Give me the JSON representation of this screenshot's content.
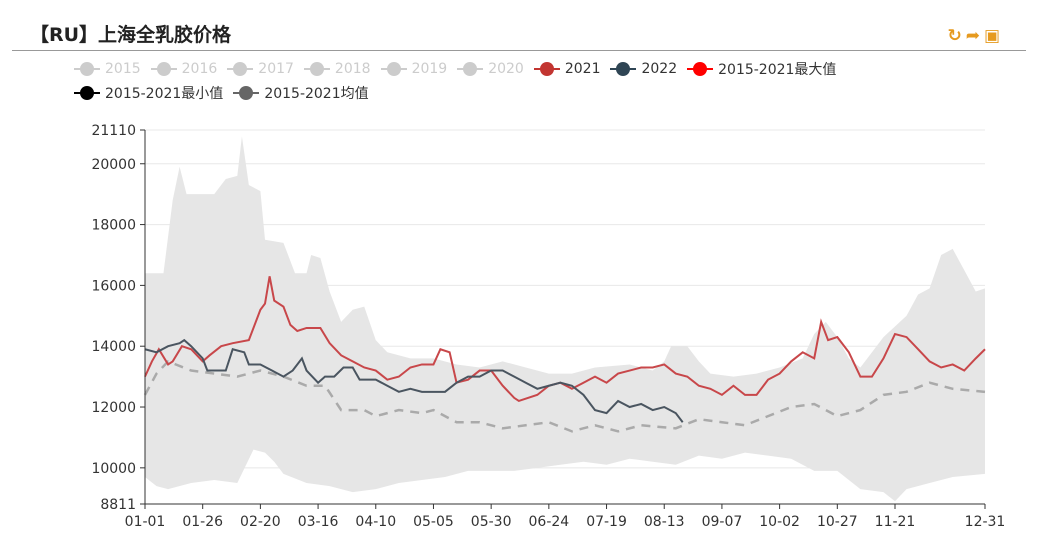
{
  "title": "【RU】上海全乳胶价格",
  "toolbar": {
    "refresh_icon": "refresh-icon",
    "share_icon": "share-icon",
    "save_icon": "save-image-icon"
  },
  "chart_data": {
    "type": "line",
    "title": "【RU】上海全乳胶价格",
    "legend": [
      {
        "name": "2015",
        "color": "#cccccc",
        "active": false
      },
      {
        "name": "2016",
        "color": "#cccccc",
        "active": false
      },
      {
        "name": "2017",
        "color": "#cccccc",
        "active": false
      },
      {
        "name": "2018",
        "color": "#cccccc",
        "active": false
      },
      {
        "name": "2019",
        "color": "#cccccc",
        "active": false
      },
      {
        "name": "2020",
        "color": "#cccccc",
        "active": false
      },
      {
        "name": "2021",
        "color": "#c23531",
        "active": true
      },
      {
        "name": "2022",
        "color": "#2f4554",
        "active": true
      },
      {
        "name": "2015-2021最大值",
        "color": "#ff0000",
        "active": true
      },
      {
        "name": "2015-2021最小值",
        "color": "#000000",
        "active": true
      },
      {
        "name": "2015-2021均值",
        "color": "#666666",
        "active": true
      }
    ],
    "legend_position": "top",
    "ylim": [
      8811,
      21110
    ],
    "yticks": [
      8811,
      10000,
      12000,
      14000,
      16000,
      18000,
      20000,
      21110
    ],
    "xticks": [
      "01-01",
      "01-26",
      "02-20",
      "03-16",
      "04-10",
      "05-05",
      "05-30",
      "06-24",
      "07-19",
      "08-13",
      "09-07",
      "10-02",
      "10-27",
      "11-21",
      "12-31"
    ],
    "x_unit": "day of year",
    "series": [
      {
        "name": "2021",
        "color": "#c23531",
        "points": [
          [
            0,
            13000
          ],
          [
            3,
            13500
          ],
          [
            6,
            13900
          ],
          [
            10,
            13400
          ],
          [
            12,
            13500
          ],
          [
            16,
            14000
          ],
          [
            20,
            13900
          ],
          [
            25,
            13500
          ],
          [
            28,
            13700
          ],
          [
            33,
            14000
          ],
          [
            38,
            14100
          ],
          [
            45,
            14200
          ],
          [
            50,
            15200
          ],
          [
            52,
            15400
          ],
          [
            54,
            16300
          ],
          [
            56,
            15500
          ],
          [
            60,
            15300
          ],
          [
            63,
            14700
          ],
          [
            66,
            14500
          ],
          [
            70,
            14600
          ],
          [
            76,
            14600
          ],
          [
            80,
            14100
          ],
          [
            85,
            13700
          ],
          [
            90,
            13500
          ],
          [
            95,
            13300
          ],
          [
            100,
            13200
          ],
          [
            105,
            12900
          ],
          [
            110,
            13000
          ],
          [
            115,
            13300
          ],
          [
            120,
            13400
          ],
          [
            125,
            13400
          ],
          [
            128,
            13900
          ],
          [
            132,
            13800
          ],
          [
            135,
            12800
          ],
          [
            140,
            12900
          ],
          [
            145,
            13200
          ],
          [
            150,
            13200
          ],
          [
            155,
            12700
          ],
          [
            160,
            12300
          ],
          [
            162,
            12200
          ],
          [
            170,
            12400
          ],
          [
            175,
            12700
          ],
          [
            180,
            12800
          ],
          [
            185,
            12600
          ],
          [
            190,
            12800
          ],
          [
            195,
            13000
          ],
          [
            200,
            12800
          ],
          [
            205,
            13100
          ],
          [
            210,
            13200
          ],
          [
            215,
            13300
          ],
          [
            220,
            13300
          ],
          [
            225,
            13400
          ],
          [
            230,
            13100
          ],
          [
            235,
            13000
          ],
          [
            240,
            12700
          ],
          [
            245,
            12600
          ],
          [
            250,
            12400
          ],
          [
            255,
            12700
          ],
          [
            260,
            12400
          ],
          [
            265,
            12400
          ],
          [
            270,
            12900
          ],
          [
            275,
            13100
          ],
          [
            280,
            13500
          ],
          [
            285,
            13800
          ],
          [
            290,
            13600
          ],
          [
            293,
            14800
          ],
          [
            296,
            14200
          ],
          [
            300,
            14300
          ],
          [
            305,
            13800
          ],
          [
            310,
            13000
          ],
          [
            315,
            13000
          ],
          [
            320,
            13600
          ],
          [
            325,
            14400
          ],
          [
            330,
            14300
          ],
          [
            335,
            13900
          ],
          [
            340,
            13500
          ],
          [
            345,
            13300
          ],
          [
            350,
            13400
          ],
          [
            355,
            13200
          ],
          [
            360,
            13600
          ],
          [
            364,
            13900
          ]
        ]
      },
      {
        "name": "2022",
        "color": "#2f4554",
        "points": [
          [
            0,
            13900
          ],
          [
            5,
            13800
          ],
          [
            10,
            14000
          ],
          [
            15,
            14100
          ],
          [
            17,
            14200
          ],
          [
            20,
            14000
          ],
          [
            25,
            13600
          ],
          [
            27,
            13200
          ],
          [
            35,
            13200
          ],
          [
            38,
            13900
          ],
          [
            43,
            13800
          ],
          [
            45,
            13400
          ],
          [
            50,
            13400
          ],
          [
            55,
            13200
          ],
          [
            60,
            13000
          ],
          [
            64,
            13200
          ],
          [
            68,
            13600
          ],
          [
            70,
            13200
          ],
          [
            75,
            12800
          ],
          [
            78,
            13000
          ],
          [
            82,
            13000
          ],
          [
            86,
            13300
          ],
          [
            90,
            13300
          ],
          [
            93,
            12900
          ],
          [
            100,
            12900
          ],
          [
            105,
            12700
          ],
          [
            110,
            12500
          ],
          [
            115,
            12600
          ],
          [
            120,
            12500
          ],
          [
            130,
            12500
          ],
          [
            135,
            12800
          ],
          [
            140,
            13000
          ],
          [
            145,
            13000
          ],
          [
            150,
            13200
          ],
          [
            155,
            13200
          ],
          [
            160,
            13000
          ],
          [
            165,
            12800
          ],
          [
            170,
            12600
          ],
          [
            175,
            12700
          ],
          [
            180,
            12800
          ],
          [
            185,
            12700
          ],
          [
            190,
            12400
          ],
          [
            195,
            11900
          ],
          [
            200,
            11800
          ],
          [
            205,
            12200
          ],
          [
            210,
            12000
          ],
          [
            215,
            12100
          ],
          [
            220,
            11900
          ],
          [
            225,
            12000
          ],
          [
            230,
            11800
          ],
          [
            233,
            11500
          ]
        ]
      },
      {
        "name": "2015-2021均值",
        "color": "#aaaaaa",
        "points": [
          [
            0,
            12400
          ],
          [
            5,
            13100
          ],
          [
            10,
            13500
          ],
          [
            20,
            13200
          ],
          [
            30,
            13100
          ],
          [
            40,
            13000
          ],
          [
            50,
            13200
          ],
          [
            60,
            13000
          ],
          [
            70,
            12700
          ],
          [
            78,
            12700
          ],
          [
            85,
            11900
          ],
          [
            95,
            11900
          ],
          [
            100,
            11700
          ],
          [
            110,
            11900
          ],
          [
            120,
            11800
          ],
          [
            125,
            11900
          ],
          [
            135,
            11500
          ],
          [
            145,
            11500
          ],
          [
            155,
            11300
          ],
          [
            165,
            11400
          ],
          [
            175,
            11500
          ],
          [
            185,
            11200
          ],
          [
            195,
            11400
          ],
          [
            205,
            11200
          ],
          [
            215,
            11400
          ],
          [
            230,
            11300
          ],
          [
            240,
            11600
          ],
          [
            250,
            11500
          ],
          [
            260,
            11400
          ],
          [
            270,
            11700
          ],
          [
            280,
            12000
          ],
          [
            290,
            12100
          ],
          [
            300,
            11700
          ],
          [
            310,
            11900
          ],
          [
            320,
            12400
          ],
          [
            330,
            12500
          ],
          [
            340,
            12800
          ],
          [
            350,
            12600
          ],
          [
            364,
            12500
          ]
        ]
      },
      {
        "name": "2015-2021最大值",
        "color": "#e6e6e6",
        "points": [
          [
            0,
            16400
          ],
          [
            8,
            16400
          ],
          [
            12,
            18800
          ],
          [
            15,
            19900
          ],
          [
            18,
            19000
          ],
          [
            30,
            19000
          ],
          [
            35,
            19500
          ],
          [
            40,
            19600
          ],
          [
            42,
            20900
          ],
          [
            45,
            19300
          ],
          [
            50,
            19100
          ],
          [
            52,
            17500
          ],
          [
            60,
            17400
          ],
          [
            65,
            16400
          ],
          [
            70,
            16400
          ],
          [
            72,
            17000
          ],
          [
            76,
            16900
          ],
          [
            80,
            15800
          ],
          [
            85,
            14800
          ],
          [
            90,
            15200
          ],
          [
            95,
            15300
          ],
          [
            100,
            14200
          ],
          [
            105,
            13800
          ],
          [
            115,
            13600
          ],
          [
            125,
            13600
          ],
          [
            135,
            13400
          ],
          [
            145,
            13300
          ],
          [
            155,
            13500
          ],
          [
            165,
            13300
          ],
          [
            175,
            13100
          ],
          [
            185,
            13100
          ],
          [
            195,
            13300
          ],
          [
            210,
            13400
          ],
          [
            220,
            13200
          ],
          [
            225,
            13500
          ],
          [
            228,
            14000
          ],
          [
            235,
            14000
          ],
          [
            240,
            13500
          ],
          [
            245,
            13100
          ],
          [
            255,
            13000
          ],
          [
            265,
            13100
          ],
          [
            275,
            13300
          ],
          [
            285,
            13600
          ],
          [
            290,
            14400
          ],
          [
            295,
            14800
          ],
          [
            300,
            14300
          ],
          [
            305,
            13600
          ],
          [
            310,
            13300
          ],
          [
            320,
            14300
          ],
          [
            330,
            15000
          ],
          [
            335,
            15700
          ],
          [
            340,
            15900
          ],
          [
            345,
            17000
          ],
          [
            350,
            17200
          ],
          [
            355,
            16500
          ],
          [
            360,
            15800
          ],
          [
            364,
            15900
          ]
        ]
      },
      {
        "name": "2015-2021最小值",
        "color": "#e6e6e6",
        "points": [
          [
            0,
            9700
          ],
          [
            5,
            9400
          ],
          [
            10,
            9300
          ],
          [
            20,
            9500
          ],
          [
            30,
            9600
          ],
          [
            40,
            9500
          ],
          [
            47,
            10600
          ],
          [
            52,
            10500
          ],
          [
            56,
            10200
          ],
          [
            60,
            9800
          ],
          [
            70,
            9500
          ],
          [
            80,
            9400
          ],
          [
            90,
            9200
          ],
          [
            100,
            9300
          ],
          [
            110,
            9500
          ],
          [
            120,
            9600
          ],
          [
            130,
            9700
          ],
          [
            140,
            9900
          ],
          [
            160,
            9900
          ],
          [
            170,
            10000
          ],
          [
            180,
            10100
          ],
          [
            190,
            10200
          ],
          [
            200,
            10100
          ],
          [
            210,
            10300
          ],
          [
            220,
            10200
          ],
          [
            230,
            10100
          ],
          [
            240,
            10400
          ],
          [
            250,
            10300
          ],
          [
            260,
            10500
          ],
          [
            270,
            10400
          ],
          [
            280,
            10300
          ],
          [
            290,
            9900
          ],
          [
            300,
            9900
          ],
          [
            310,
            9300
          ],
          [
            320,
            9200
          ],
          [
            325,
            8900
          ],
          [
            330,
            9300
          ],
          [
            340,
            9500
          ],
          [
            350,
            9700
          ],
          [
            364,
            9800
          ]
        ]
      }
    ]
  }
}
